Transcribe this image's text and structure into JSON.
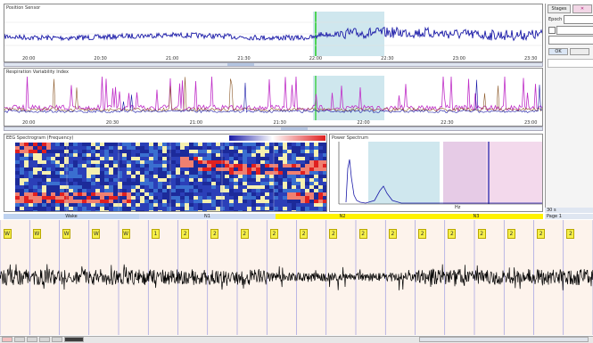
{
  "panels": {
    "top_title": "Position Sensor",
    "middle_title": "Respiration Variability Index",
    "spectrogram_title": "EEG Spectrogram (Frequency)",
    "spectrum_title": "Power Spectrum"
  },
  "top_axis": {
    "ticks": [
      "20:00",
      "20:30",
      "21:00",
      "21:30",
      "22:00",
      "22:30",
      "23:00",
      "23:30"
    ]
  },
  "middle_axis": {
    "ticks": [
      "20:00",
      "20:30",
      "21:00",
      "21:30",
      "22:00",
      "22:30",
      "23:00"
    ]
  },
  "spectrum_axis": {
    "label": "Hz"
  },
  "hypnogram_bar": {
    "segments": [
      "Wake",
      "N1",
      "N2",
      "N3"
    ]
  },
  "right_panel": {
    "tab_label": "Stages",
    "field_label": "Epoch",
    "ok_label": "OK",
    "status_1": "30 s",
    "status_2": "Page 1"
  },
  "stage_labels": [
    "W",
    "W",
    "W",
    "W",
    "W",
    "1",
    "2",
    "2",
    "2",
    "2",
    "2",
    "2",
    "2",
    "2",
    "2",
    "2",
    "2",
    "2",
    "2",
    "2"
  ],
  "colors": {
    "accent": "#1a1aa8",
    "cursor": "#22cc22",
    "highlight": "#cfe7ee",
    "stage_yellow": "#f6f04a",
    "segment_yellow": "#fff200"
  }
}
